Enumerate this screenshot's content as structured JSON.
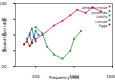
{
  "chart_data": {
    "type": "line",
    "x_label": "Frequency (Hz)",
    "y_label": "Sound level (dB)",
    "log": "x",
    "xlim": [
      30,
      10000
    ],
    "xticks": [
      100,
      1000,
      10000
    ],
    "ylim": [
      20,
      100
    ],
    "yticks": [
      20,
      40,
      60,
      80,
      100
    ],
    "legend": "top-right",
    "series": [
      {
        "name": "Ambient noise",
        "color": "#e0198a",
        "marker": "circle",
        "x": [
          100,
          150,
          300,
          500,
          800,
          1200,
          2000,
          3000,
          5000
        ],
        "values": [
          55,
          60,
          72,
          78,
          85,
          92,
          88,
          95,
          90
        ]
      },
      {
        "name": "Juveniles",
        "color": "#555555",
        "marker": "circle",
        "x": [
          60,
          70,
          80,
          90,
          100
        ],
        "values": [
          55,
          60,
          50,
          58,
          52
        ]
      },
      {
        "name": "Adults",
        "color": "#2ca02c",
        "marker": "circle",
        "x": [
          100,
          150,
          200,
          300,
          500,
          800,
          1000,
          1500
        ],
        "values": [
          70,
          62,
          45,
          35,
          30,
          40,
          55,
          65
        ]
      },
      {
        "name": "Larvae",
        "color": "#1f77b4",
        "marker": "circle",
        "x": [
          70,
          80,
          90,
          100,
          120
        ],
        "values": [
          62,
          68,
          58,
          65,
          60
        ]
      },
      {
        "name": "Eggs",
        "color": "#8b1a1a",
        "marker": "circle",
        "x": [
          50,
          60,
          70,
          80
        ],
        "values": [
          48,
          52,
          46,
          50
        ]
      }
    ]
  }
}
